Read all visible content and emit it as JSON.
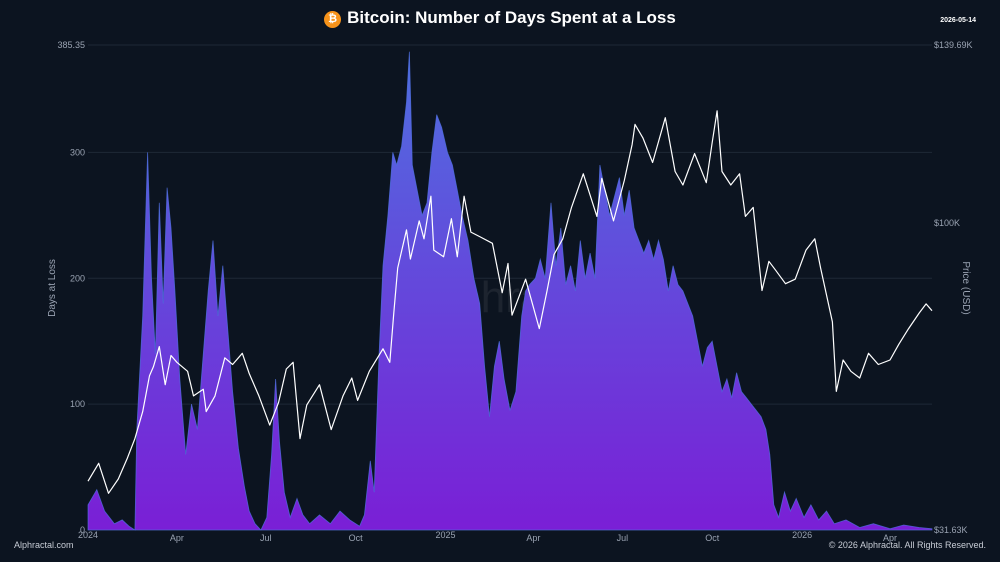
{
  "header": {
    "title": "Bitcoin: Number of Days Spent at a Loss",
    "icon": "bitcoin-icon",
    "icon_glyph": "₿",
    "date": "2026-05-14"
  },
  "footer": {
    "source": "Alphractal.com",
    "copyright": "© 2026 Alphractal. All Rights Reserved."
  },
  "watermark": "Alphractal",
  "colors": {
    "background": "#0c1420",
    "area_top": "#4f6fe0",
    "area_bottom": "#7a1fd6",
    "price_line": "#ffffff",
    "grid": "#1e2836",
    "bitcoin": "#f7931a"
  },
  "chart_data": {
    "type": "area",
    "title": "Bitcoin: Number of Days Spent at a Loss",
    "ylabel": "Days at Loss",
    "y2label": "Price (USD)",
    "ylim": [
      0,
      385.35
    ],
    "y_ticks": [
      0,
      100,
      200,
      300,
      385.35
    ],
    "y_tick_labels": [
      "0",
      "100",
      "200",
      "300",
      "385.35"
    ],
    "y2_tick_labels": [
      "$31.63K",
      "$100K",
      "$139.69K"
    ],
    "y2_ticks": [
      31630,
      100000,
      139690
    ],
    "y2lim": [
      31630,
      139690
    ],
    "xlim": [
      "2024-01-01",
      "2026-05-14"
    ],
    "x_ticks": [
      {
        "date": "2024-01-01",
        "label": "2024",
        "small": true
      },
      {
        "date": "2024-04-01",
        "label": "Apr",
        "small": false
      },
      {
        "date": "2024-07-01",
        "label": "Jul",
        "small": false
      },
      {
        "date": "2024-10-01",
        "label": "Oct",
        "small": false
      },
      {
        "date": "2025-01-01",
        "label": "2025",
        "small": true
      },
      {
        "date": "2025-04-01",
        "label": "Apr",
        "small": false
      },
      {
        "date": "2025-07-01",
        "label": "Jul",
        "small": false
      },
      {
        "date": "2025-10-01",
        "label": "Oct",
        "small": false
      },
      {
        "date": "2026-01-01",
        "label": "2026",
        "small": true
      },
      {
        "date": "2026-04-01",
        "label": "Apr",
        "small": false
      }
    ],
    "grid": true,
    "series": [
      {
        "name": "Days at Loss",
        "axis": "left",
        "points": [
          [
            "2024-01-01",
            20
          ],
          [
            "2024-01-10",
            32
          ],
          [
            "2024-01-18",
            15
          ],
          [
            "2024-01-28",
            5
          ],
          [
            "2024-02-05",
            8
          ],
          [
            "2024-02-12",
            3
          ],
          [
            "2024-02-18",
            0
          ],
          [
            "2024-02-20",
            80
          ],
          [
            "2024-02-26",
            170
          ],
          [
            "2024-03-02",
            300
          ],
          [
            "2024-03-06",
            200
          ],
          [
            "2024-03-10",
            140
          ],
          [
            "2024-03-14",
            260
          ],
          [
            "2024-03-18",
            180
          ],
          [
            "2024-03-22",
            272
          ],
          [
            "2024-03-26",
            240
          ],
          [
            "2024-03-30",
            190
          ],
          [
            "2024-04-04",
            120
          ],
          [
            "2024-04-10",
            60
          ],
          [
            "2024-04-16",
            100
          ],
          [
            "2024-04-22",
            80
          ],
          [
            "2024-04-28",
            140
          ],
          [
            "2024-05-03",
            190
          ],
          [
            "2024-05-08",
            230
          ],
          [
            "2024-05-13",
            170
          ],
          [
            "2024-05-18",
            210
          ],
          [
            "2024-05-23",
            160
          ],
          [
            "2024-05-28",
            110
          ],
          [
            "2024-06-03",
            65
          ],
          [
            "2024-06-09",
            35
          ],
          [
            "2024-06-14",
            15
          ],
          [
            "2024-06-20",
            5
          ],
          [
            "2024-06-26",
            0
          ],
          [
            "2024-07-02",
            10
          ],
          [
            "2024-07-07",
            60
          ],
          [
            "2024-07-11",
            120
          ],
          [
            "2024-07-15",
            70
          ],
          [
            "2024-07-20",
            30
          ],
          [
            "2024-07-26",
            10
          ],
          [
            "2024-08-02",
            25
          ],
          [
            "2024-08-08",
            12
          ],
          [
            "2024-08-15",
            5
          ],
          [
            "2024-08-25",
            12
          ],
          [
            "2024-09-05",
            5
          ],
          [
            "2024-09-15",
            15
          ],
          [
            "2024-09-25",
            8
          ],
          [
            "2024-10-05",
            3
          ],
          [
            "2024-10-10",
            12
          ],
          [
            "2024-10-16",
            55
          ],
          [
            "2024-10-20",
            30
          ],
          [
            "2024-10-25",
            140
          ],
          [
            "2024-10-29",
            210
          ],
          [
            "2024-11-03",
            250
          ],
          [
            "2024-11-08",
            300
          ],
          [
            "2024-11-12",
            290
          ],
          [
            "2024-11-17",
            305
          ],
          [
            "2024-11-22",
            340
          ],
          [
            "2024-11-25",
            380
          ],
          [
            "2024-11-28",
            290
          ],
          [
            "2024-12-03",
            270
          ],
          [
            "2024-12-08",
            250
          ],
          [
            "2024-12-13",
            260
          ],
          [
            "2024-12-18",
            300
          ],
          [
            "2024-12-23",
            330
          ],
          [
            "2024-12-28",
            320
          ],
          [
            "2025-01-03",
            300
          ],
          [
            "2025-01-08",
            290
          ],
          [
            "2025-01-13",
            270
          ],
          [
            "2025-01-18",
            250
          ],
          [
            "2025-01-24",
            230
          ],
          [
            "2025-01-30",
            200
          ],
          [
            "2025-02-05",
            180
          ],
          [
            "2025-02-10",
            130
          ],
          [
            "2025-02-15",
            90
          ],
          [
            "2025-02-20",
            130
          ],
          [
            "2025-02-25",
            150
          ],
          [
            "2025-03-02",
            120
          ],
          [
            "2025-03-08",
            95
          ],
          [
            "2025-03-14",
            110
          ],
          [
            "2025-03-20",
            170
          ],
          [
            "2025-03-24",
            190
          ],
          [
            "2025-03-28",
            195
          ],
          [
            "2025-04-03",
            200
          ],
          [
            "2025-04-08",
            215
          ],
          [
            "2025-04-13",
            200
          ],
          [
            "2025-04-19",
            260
          ],
          [
            "2025-04-24",
            210
          ],
          [
            "2025-04-29",
            240
          ],
          [
            "2025-05-04",
            195
          ],
          [
            "2025-05-09",
            210
          ],
          [
            "2025-05-14",
            190
          ],
          [
            "2025-05-19",
            230
          ],
          [
            "2025-05-24",
            200
          ],
          [
            "2025-05-29",
            220
          ],
          [
            "2025-06-03",
            200
          ],
          [
            "2025-06-08",
            290
          ],
          [
            "2025-06-13",
            270
          ],
          [
            "2025-06-18",
            250
          ],
          [
            "2025-06-23",
            265
          ],
          [
            "2025-06-28",
            280
          ],
          [
            "2025-07-03",
            250
          ],
          [
            "2025-07-08",
            270
          ],
          [
            "2025-07-13",
            240
          ],
          [
            "2025-07-18",
            230
          ],
          [
            "2025-07-23",
            220
          ],
          [
            "2025-07-28",
            230
          ],
          [
            "2025-08-02",
            215
          ],
          [
            "2025-08-07",
            230
          ],
          [
            "2025-08-12",
            215
          ],
          [
            "2025-08-17",
            190
          ],
          [
            "2025-08-22",
            210
          ],
          [
            "2025-08-27",
            195
          ],
          [
            "2025-09-01",
            190
          ],
          [
            "2025-09-06",
            180
          ],
          [
            "2025-09-11",
            170
          ],
          [
            "2025-09-16",
            150
          ],
          [
            "2025-09-21",
            130
          ],
          [
            "2025-09-26",
            145
          ],
          [
            "2025-10-01",
            150
          ],
          [
            "2025-10-06",
            130
          ],
          [
            "2025-10-11",
            110
          ],
          [
            "2025-10-16",
            120
          ],
          [
            "2025-10-21",
            105
          ],
          [
            "2025-10-26",
            125
          ],
          [
            "2025-10-31",
            110
          ],
          [
            "2025-11-05",
            105
          ],
          [
            "2025-11-10",
            100
          ],
          [
            "2025-11-15",
            95
          ],
          [
            "2025-11-20",
            90
          ],
          [
            "2025-11-25",
            80
          ],
          [
            "2025-11-29",
            60
          ],
          [
            "2025-12-03",
            20
          ],
          [
            "2025-12-08",
            10
          ],
          [
            "2025-12-14",
            30
          ],
          [
            "2025-12-20",
            15
          ],
          [
            "2025-12-26",
            25
          ],
          [
            "2026-01-03",
            10
          ],
          [
            "2026-01-10",
            20
          ],
          [
            "2026-01-18",
            8
          ],
          [
            "2026-01-26",
            15
          ],
          [
            "2026-02-03",
            5
          ],
          [
            "2026-02-15",
            8
          ],
          [
            "2026-03-01",
            2
          ],
          [
            "2026-03-15",
            5
          ],
          [
            "2026-04-01",
            1
          ],
          [
            "2026-04-15",
            4
          ],
          [
            "2026-05-01",
            2
          ],
          [
            "2026-05-14",
            1
          ]
        ]
      },
      {
        "name": "Price (USD)",
        "axis": "right",
        "points": [
          [
            "2024-01-01",
            42500
          ],
          [
            "2024-01-12",
            46500
          ],
          [
            "2024-01-22",
            39800
          ],
          [
            "2024-02-01",
            43000
          ],
          [
            "2024-02-10",
            47500
          ],
          [
            "2024-02-18",
            52000
          ],
          [
            "2024-02-26",
            58000
          ],
          [
            "2024-03-04",
            66000
          ],
          [
            "2024-03-08",
            68000
          ],
          [
            "2024-03-14",
            72500
          ],
          [
            "2024-03-20",
            64000
          ],
          [
            "2024-03-26",
            70500
          ],
          [
            "2024-04-01",
            69000
          ],
          [
            "2024-04-12",
            67000
          ],
          [
            "2024-04-18",
            61500
          ],
          [
            "2024-04-28",
            63000
          ],
          [
            "2024-05-01",
            58000
          ],
          [
            "2024-05-10",
            61500
          ],
          [
            "2024-05-20",
            70000
          ],
          [
            "2024-05-28",
            68500
          ],
          [
            "2024-06-07",
            71000
          ],
          [
            "2024-06-14",
            66500
          ],
          [
            "2024-06-24",
            61500
          ],
          [
            "2024-07-05",
            55000
          ],
          [
            "2024-07-14",
            60000
          ],
          [
            "2024-07-22",
            67500
          ],
          [
            "2024-07-29",
            69000
          ],
          [
            "2024-08-05",
            52000
          ],
          [
            "2024-08-12",
            59500
          ],
          [
            "2024-08-25",
            64000
          ],
          [
            "2024-09-06",
            54000
          ],
          [
            "2024-09-18",
            61500
          ],
          [
            "2024-09-27",
            65500
          ],
          [
            "2024-10-03",
            60500
          ],
          [
            "2024-10-15",
            67000
          ],
          [
            "2024-10-29",
            72000
          ],
          [
            "2024-11-05",
            69000
          ],
          [
            "2024-11-09",
            80000
          ],
          [
            "2024-11-13",
            90000
          ],
          [
            "2024-11-22",
            98500
          ],
          [
            "2024-11-26",
            92000
          ],
          [
            "2024-12-05",
            100500
          ],
          [
            "2024-12-10",
            96500
          ],
          [
            "2024-12-17",
            106000
          ],
          [
            "2024-12-20",
            94000
          ],
          [
            "2024-12-30",
            92500
          ],
          [
            "2025-01-07",
            101000
          ],
          [
            "2025-01-13",
            92500
          ],
          [
            "2025-01-20",
            106000
          ],
          [
            "2025-01-27",
            98000
          ],
          [
            "2025-02-05",
            97000
          ],
          [
            "2025-02-18",
            95500
          ],
          [
            "2025-02-28",
            84500
          ],
          [
            "2025-03-06",
            91000
          ],
          [
            "2025-03-10",
            79500
          ],
          [
            "2025-03-24",
            87500
          ],
          [
            "2025-04-07",
            76500
          ],
          [
            "2025-04-15",
            85000
          ],
          [
            "2025-04-22",
            93000
          ],
          [
            "2025-05-01",
            96500
          ],
          [
            "2025-05-10",
            103500
          ],
          [
            "2025-05-22",
            111000
          ],
          [
            "2025-06-05",
            101500
          ],
          [
            "2025-06-10",
            110000
          ],
          [
            "2025-06-22",
            100500
          ],
          [
            "2025-07-03",
            109500
          ],
          [
            "2025-07-11",
            117500
          ],
          [
            "2025-07-14",
            122000
          ],
          [
            "2025-07-22",
            119000
          ],
          [
            "2025-08-01",
            113500
          ],
          [
            "2025-08-14",
            123500
          ],
          [
            "2025-08-24",
            111500
          ],
          [
            "2025-09-01",
            108500
          ],
          [
            "2025-09-13",
            115500
          ],
          [
            "2025-09-25",
            109000
          ],
          [
            "2025-10-01",
            118000
          ],
          [
            "2025-10-06",
            125000
          ],
          [
            "2025-10-11",
            111500
          ],
          [
            "2025-10-20",
            108500
          ],
          [
            "2025-10-29",
            111000
          ],
          [
            "2025-11-04",
            101500
          ],
          [
            "2025-11-12",
            103500
          ],
          [
            "2025-11-21",
            85000
          ],
          [
            "2025-11-28",
            91500
          ],
          [
            "2025-12-05",
            89500
          ],
          [
            "2025-12-15",
            86500
          ],
          [
            "2025-12-25",
            87500
          ],
          [
            "2026-01-05",
            94000
          ],
          [
            "2026-01-14",
            96500
          ],
          [
            "2026-01-20",
            90000
          ],
          [
            "2026-02-01",
            78000
          ],
          [
            "2026-02-05",
            62500
          ],
          [
            "2026-02-12",
            69500
          ],
          [
            "2026-02-20",
            67000
          ],
          [
            "2026-03-01",
            65500
          ],
          [
            "2026-03-10",
            71000
          ],
          [
            "2026-03-20",
            68500
          ],
          [
            "2026-04-01",
            69500
          ],
          [
            "2026-04-10",
            73000
          ],
          [
            "2026-04-20",
            76500
          ],
          [
            "2026-05-01",
            80000
          ],
          [
            "2026-05-08",
            82000
          ],
          [
            "2026-05-14",
            80500
          ]
        ]
      }
    ]
  }
}
